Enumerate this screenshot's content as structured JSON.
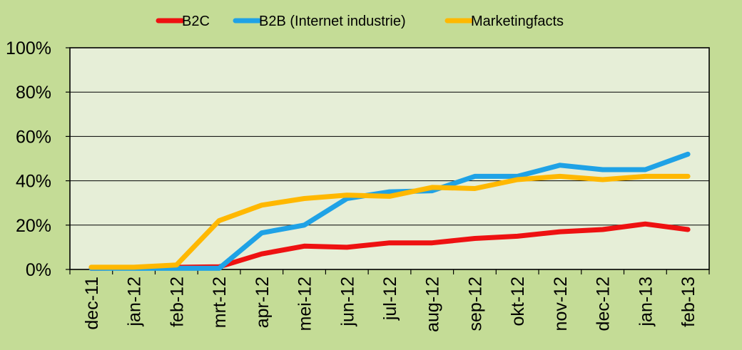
{
  "chart_data": {
    "type": "line",
    "categories": [
      "dec-11",
      "jan-12",
      "feb-12",
      "mrt-12",
      "apr-12",
      "mei-12",
      "jun-12",
      "jul-12",
      "aug-12",
      "sep-12",
      "okt-12",
      "nov-12",
      "dec-12",
      "jan-13",
      "feb-13"
    ],
    "series": [
      {
        "name": "B2C",
        "color": "#ee1111",
        "values": [
          0.5,
          0.8,
          1.0,
          1.2,
          7.0,
          10.5,
          10.0,
          12.0,
          12.0,
          14.0,
          15.0,
          17.0,
          18.0,
          20.5,
          18.0
        ]
      },
      {
        "name": "B2B (Internet industrie)",
        "color": "#1fa2e6",
        "values": [
          0.5,
          0.5,
          0.5,
          0.5,
          16.5,
          20.0,
          32.0,
          35.0,
          35.5,
          42.0,
          42.0,
          47.0,
          45.0,
          45.0,
          52.0
        ]
      },
      {
        "name": "Marketingfacts",
        "color": "#ffb800",
        "values": [
          1.0,
          1.0,
          2.0,
          22.0,
          29.0,
          32.0,
          33.5,
          33.0,
          37.0,
          36.5,
          40.5,
          42.0,
          40.5,
          42.0,
          42.0
        ]
      }
    ],
    "yticks": [
      "0%",
      "20%",
      "40%",
      "60%",
      "80%",
      "100%"
    ],
    "ylim": [
      0,
      100
    ],
    "grid": true,
    "legend_position": "top",
    "colors": {
      "background": "#c4dc96",
      "plot_area": "#e6eed7",
      "gridline": "#000000",
      "axis": "#000000"
    }
  }
}
